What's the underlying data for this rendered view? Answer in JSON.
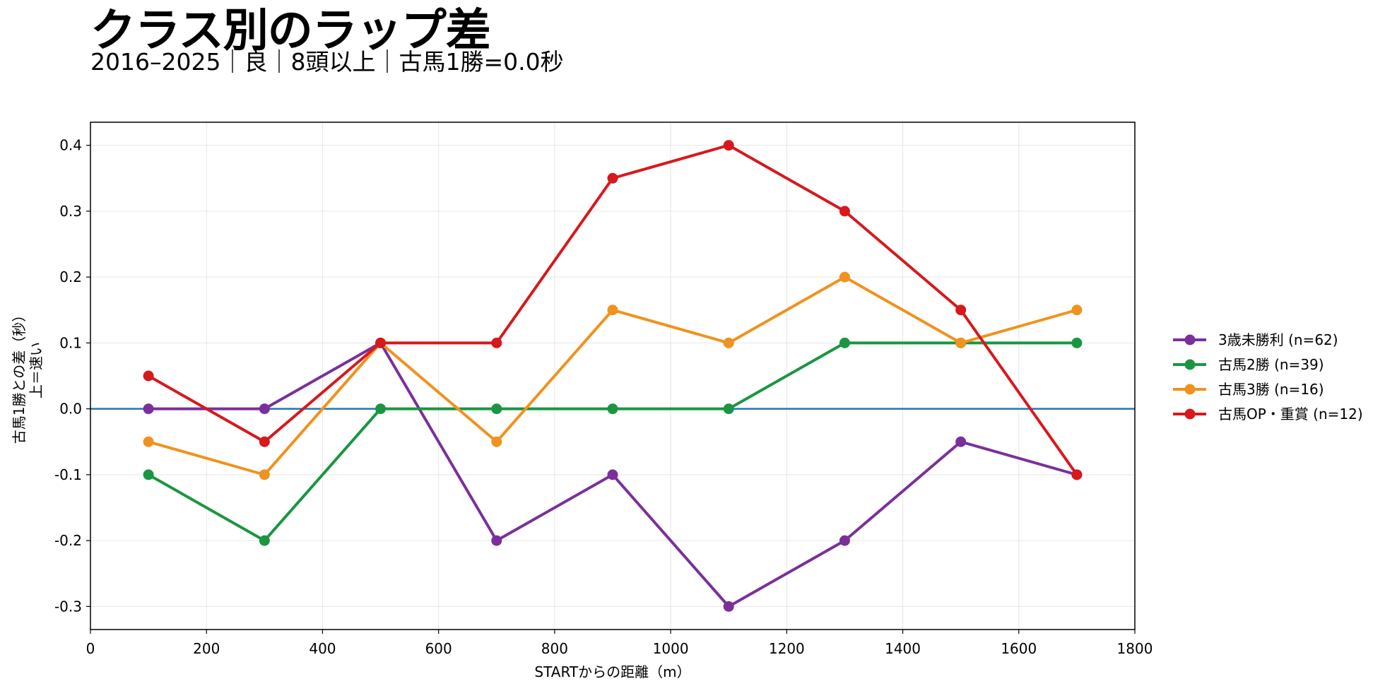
{
  "title": "クラス別のラップ差",
  "subtitle": "2016–2025｜良｜8頭以上｜古馬1勝=0.0秒",
  "chart_data": {
    "type": "line",
    "xlabel": "STARTからの距離（m）",
    "ylabel_line1": "古馬1勝との差（秒）",
    "ylabel_line2": "上＝速い",
    "xlim": [
      0,
      1800
    ],
    "ylim": [
      -0.335,
      0.435
    ],
    "xticks": [
      0,
      200,
      400,
      600,
      800,
      1000,
      1200,
      1400,
      1600,
      1800
    ],
    "yticks": [
      -0.3,
      -0.2,
      -0.1,
      0.0,
      0.1,
      0.2,
      0.3,
      0.4
    ],
    "ytick_labels": [
      "-0.3",
      "-0.2",
      "-0.1",
      "0.0",
      "0.1",
      "0.2",
      "0.3",
      "0.4"
    ],
    "grid": true,
    "legend_position": "right",
    "baseline": {
      "y": 0.0,
      "color": "#1f77b4"
    },
    "x": [
      100,
      300,
      500,
      700,
      900,
      1100,
      1300,
      1500,
      1700
    ],
    "series": [
      {
        "name": "3歳未勝利 (n=62)",
        "color": "#7b2f9b",
        "values": [
          0.0,
          0.0,
          0.1,
          -0.2,
          -0.1,
          -0.3,
          -0.2,
          -0.05,
          -0.1
        ]
      },
      {
        "name": "古馬2勝 (n=39)",
        "color": "#1a9641",
        "values": [
          -0.1,
          -0.2,
          0.0,
          0.0,
          0.0,
          0.0,
          0.1,
          0.1,
          0.1
        ]
      },
      {
        "name": "古馬3勝 (n=16)",
        "color": "#f0921e",
        "values": [
          -0.05,
          -0.1,
          0.1,
          -0.05,
          0.15,
          0.1,
          0.2,
          0.1,
          0.15
        ]
      },
      {
        "name": "古馬OP・重賞 (n=12)",
        "color": "#d7191c",
        "values": [
          0.05,
          -0.05,
          0.1,
          0.1,
          0.35,
          0.4,
          0.3,
          0.15,
          -0.1
        ]
      }
    ]
  }
}
